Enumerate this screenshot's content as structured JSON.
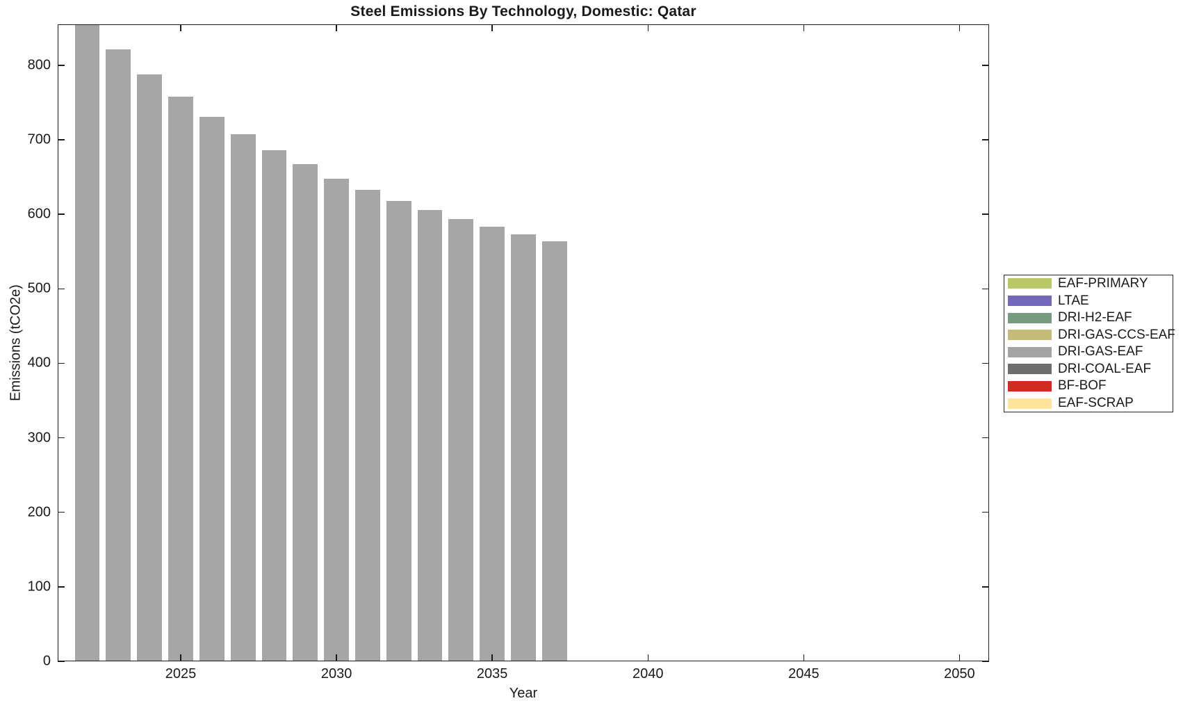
{
  "chart_data": {
    "type": "bar",
    "title": "Steel Emissions By Technology, Domestic: Qatar",
    "xlabel": "Year",
    "ylabel": "Emissions (tCO2e)",
    "xlim": [
      2021.05,
      2050.95
    ],
    "ylim": [
      0,
      855
    ],
    "x_ticks": [
      2025,
      2030,
      2035,
      2040,
      2045,
      2050
    ],
    "y_ticks": [
      0,
      100,
      200,
      300,
      400,
      500,
      600,
      700,
      800
    ],
    "grid": false,
    "legend_position": "right-outside",
    "bar_width_years": 0.8,
    "series": [
      {
        "name": "DRI-GAS-EAF",
        "color": "#a6a6a6",
        "x": [
          2022,
          2023,
          2024,
          2025,
          2026,
          2027,
          2028,
          2029,
          2030,
          2031,
          2032,
          2033,
          2034,
          2035,
          2036,
          2037
        ],
        "values": [
          855,
          821,
          788,
          758,
          731,
          708,
          686,
          667,
          648,
          633,
          618,
          606,
          594,
          583,
          573,
          564
        ]
      }
    ],
    "legend": {
      "entries": [
        {
          "label": "EAF-PRIMARY",
          "color": "#bac768"
        },
        {
          "label": "LTAE",
          "color": "#7468ba"
        },
        {
          "label": "DRI-H2-EAF",
          "color": "#789a80"
        },
        {
          "label": "DRI-GAS-CCS-EAF",
          "color": "#c6bc7a"
        },
        {
          "label": "DRI-GAS-EAF",
          "color": "#a3a3a3"
        },
        {
          "label": "DRI-COAL-EAF",
          "color": "#6e6e6e"
        },
        {
          "label": "BF-BOF",
          "color": "#d22b24"
        },
        {
          "label": "EAF-SCRAP",
          "color": "#ffe49c"
        }
      ]
    },
    "axis_color": "#1c1c1c",
    "text_color": "#1a1a1a",
    "background_color": "#ffffff"
  }
}
